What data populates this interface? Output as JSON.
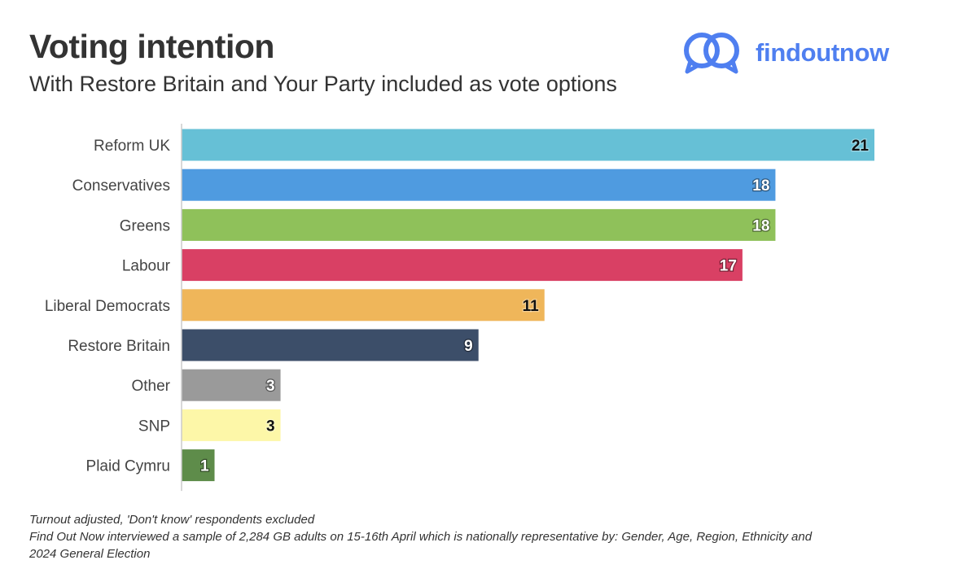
{
  "header": {
    "title": "Voting intention",
    "subtitle": "With Restore Britain and Your Party included as vote options"
  },
  "logo": {
    "text": "findoutnow",
    "icon": "speech-bubbles-icon",
    "color": "#4f7ff0"
  },
  "chart_data": {
    "type": "bar",
    "orientation": "horizontal",
    "categories": [
      "Reform UK",
      "Conservatives",
      "Greens",
      "Labour",
      "Liberal Democrats",
      "Restore Britain",
      "Other",
      "SNP",
      "Plaid Cymru"
    ],
    "values": [
      21,
      18,
      18,
      17,
      11,
      9,
      3,
      3,
      1
    ],
    "colors": [
      "#66c0d6",
      "#4f9be0",
      "#8fc15a",
      "#d94064",
      "#efb65a",
      "#3c4e69",
      "#9a9a9a",
      "#fdf7a8",
      "#5e8c4a"
    ],
    "label_colors": [
      "#111111",
      "#ffffff",
      "#ffffff",
      "#ffffff",
      "#111111",
      "#ffffff",
      "#ffffff",
      "#111111",
      "#ffffff"
    ],
    "xlim": [
      0,
      21
    ],
    "title": "Voting intention",
    "xlabel": "",
    "ylabel": "",
    "grid": false
  },
  "footnote": {
    "line1": "Turnout adjusted, 'Don't know' respondents excluded",
    "line2": "Find Out Now interviewed a sample of 2,284 GB adults on 15-16th April which is nationally representative by: Gender, Age, Region, Ethnicity and",
    "line3": "2024 General Election"
  }
}
